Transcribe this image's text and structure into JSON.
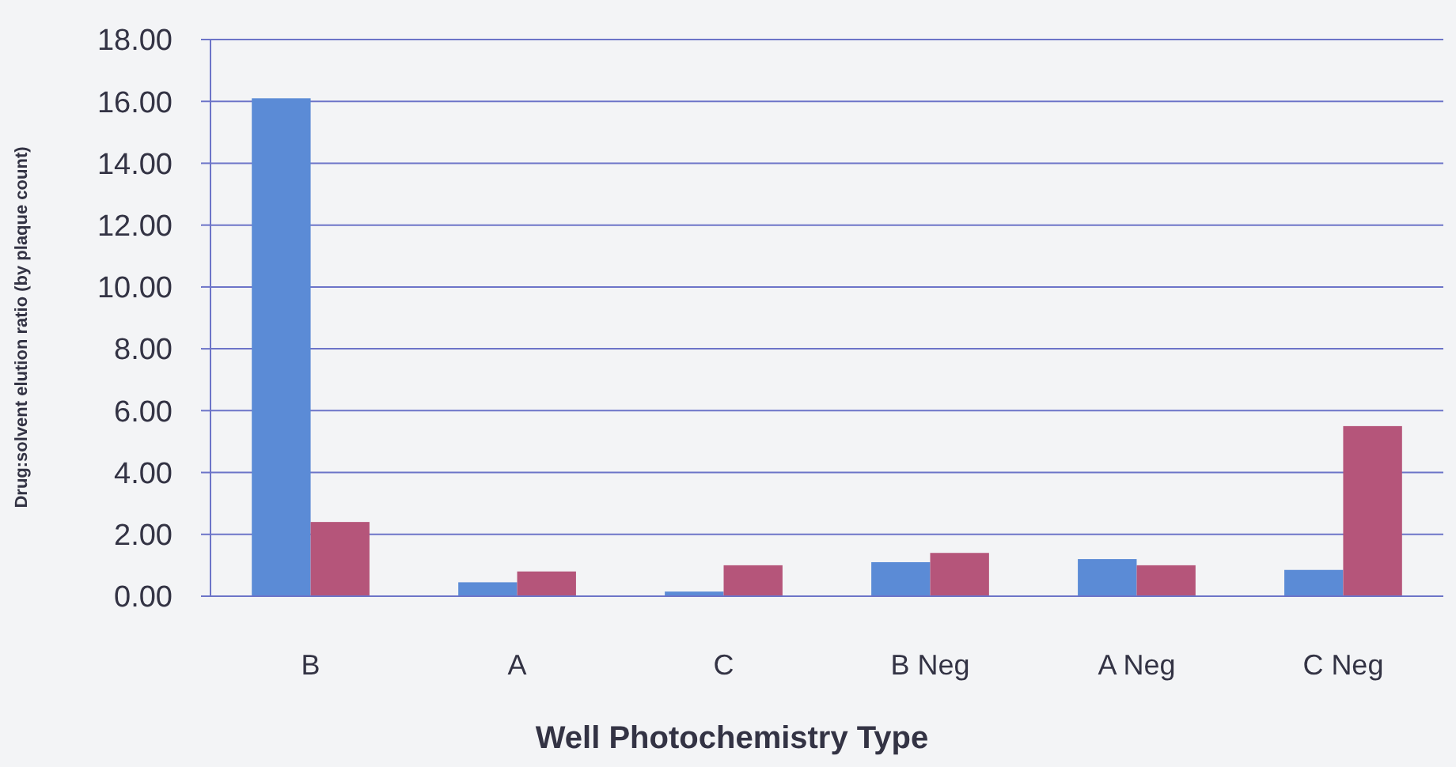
{
  "chart_data": {
    "type": "bar",
    "xlabel": "Well Photochemistry Type",
    "ylabel": "Drug:solvent elution ratio (by plaque count)",
    "categories": [
      "B",
      "A",
      "C",
      "B Neg",
      "A Neg",
      "C Neg"
    ],
    "series": [
      {
        "color": "#5b8bd6",
        "values": [
          16.1,
          0.45,
          0.15,
          1.1,
          1.2,
          0.85
        ]
      },
      {
        "color": "#b5557a",
        "values": [
          2.4,
          0.8,
          1.0,
          1.4,
          1.0,
          5.5
        ]
      }
    ],
    "ylim": [
      0,
      18
    ],
    "yticks": [
      {
        "value": 0,
        "label": "0.00"
      },
      {
        "value": 2,
        "label": "2.00"
      },
      {
        "value": 4,
        "label": "4.00"
      },
      {
        "value": 6,
        "label": "6.00"
      },
      {
        "value": 8,
        "label": "8.00"
      },
      {
        "value": 10,
        "label": "10.00"
      },
      {
        "value": 12,
        "label": "12.00"
      },
      {
        "value": 14,
        "label": "14.00"
      },
      {
        "value": 16,
        "label": "16.00"
      },
      {
        "value": 18,
        "label": "18.00"
      }
    ],
    "grid": "y"
  }
}
